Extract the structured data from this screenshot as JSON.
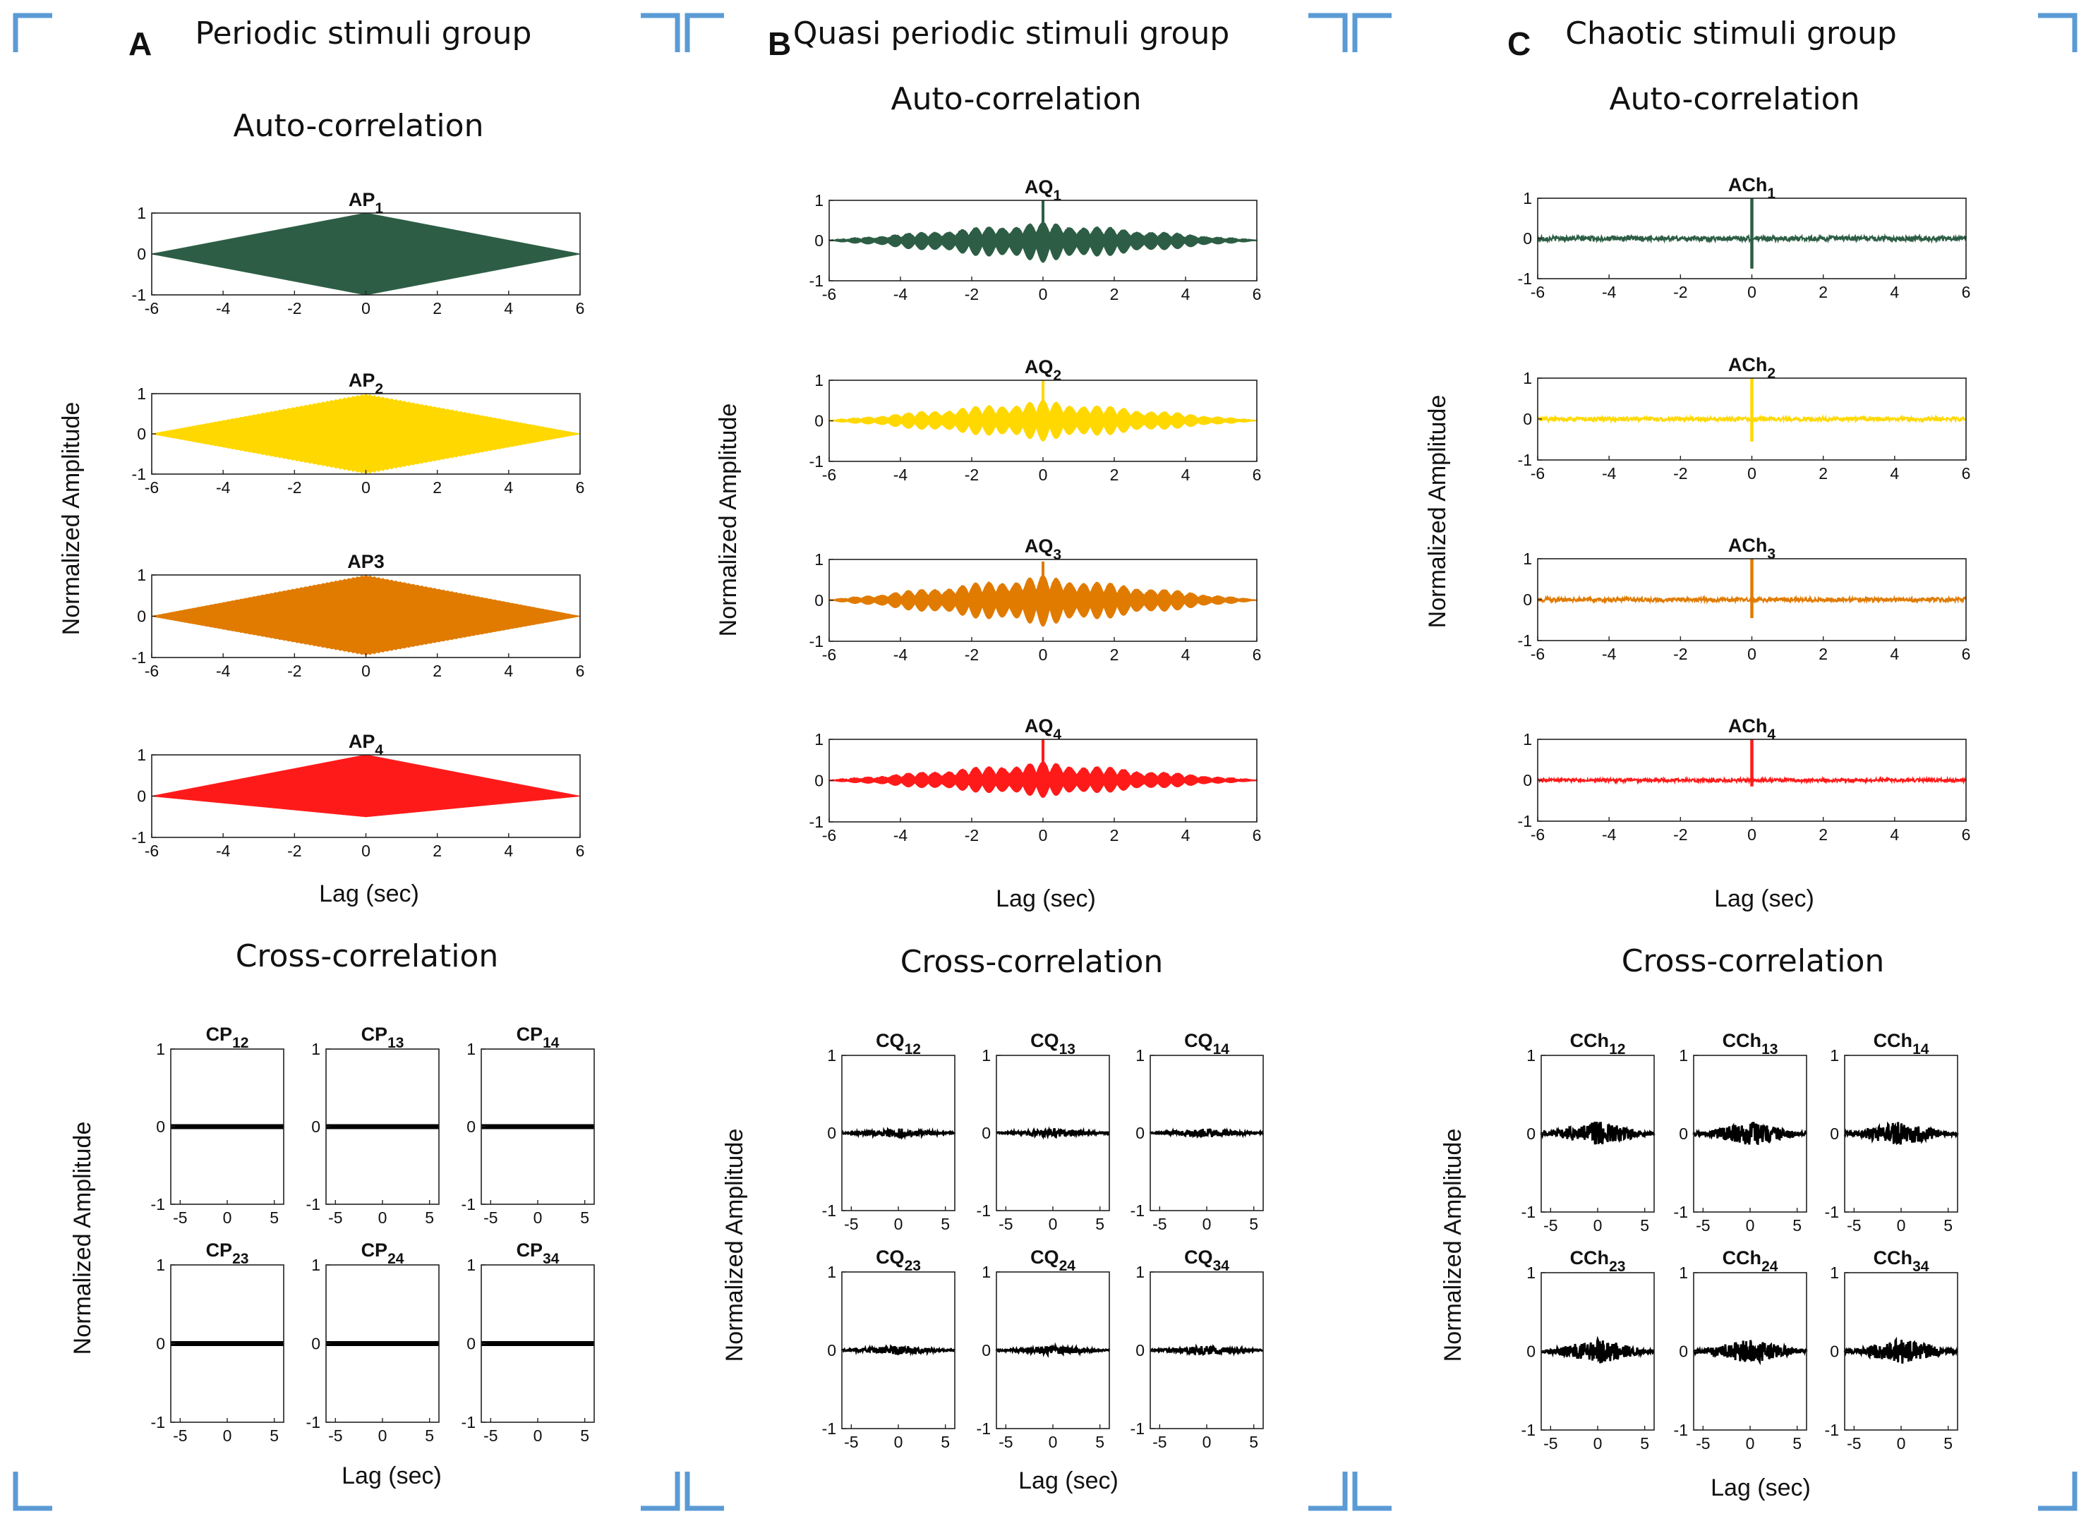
{
  "colors": {
    "corner_marks": "#5b9bd5",
    "series": [
      "#2d5e45",
      "#ffd800",
      "#e07b00",
      "#ff1a1a"
    ],
    "cross": "#000000"
  },
  "chart_data": [
    {
      "panel": "A",
      "title": "Periodic stimuli group",
      "auto": {
        "title": "Auto-correlation",
        "type": "area",
        "xlabel": "Lag (sec)",
        "ylabel": "Normalized Amplitude",
        "xlim": [
          -6,
          6
        ],
        "ylim": [
          -1,
          1
        ],
        "xticks": [
          "-6",
          "-4",
          "-2",
          "0",
          "2",
          "4",
          "6"
        ],
        "yticks": [
          "1",
          "0",
          "-1"
        ],
        "shape": "periodic",
        "series": [
          {
            "name": "AP",
            "sub": "1",
            "peak": 1.0,
            "trough": -1.0,
            "ripple": 0.0,
            "color": "#2d5e45"
          },
          {
            "name": "AP",
            "sub": "2",
            "peak": 1.0,
            "trough": -1.0,
            "ripple": 0.04,
            "color": "#ffd800"
          },
          {
            "name": "AP3",
            "sub": "",
            "peak": 1.0,
            "trough": -0.95,
            "ripple": 0.03,
            "color": "#e07b00"
          },
          {
            "name": "AP",
            "sub": "4",
            "peak": 1.0,
            "trough": -0.5,
            "ripple": 0.0,
            "color": "#ff1a1a"
          }
        ]
      },
      "cross": {
        "title": "Cross-correlation",
        "type": "line",
        "xlabel": "Lag (sec)",
        "ylabel": "Normalized Amplitude",
        "xlim": [
          -6,
          6
        ],
        "ylim": [
          -1,
          1
        ],
        "xticks": [
          "-5",
          "0",
          "5"
        ],
        "yticks": [
          "1",
          "0",
          "-1"
        ],
        "amplitude": 0.0,
        "plots": [
          {
            "name": "CP",
            "sub": "12"
          },
          {
            "name": "CP",
            "sub": "13"
          },
          {
            "name": "CP",
            "sub": "14"
          },
          {
            "name": "CP",
            "sub": "23"
          },
          {
            "name": "CP",
            "sub": "24"
          },
          {
            "name": "CP",
            "sub": "34"
          }
        ]
      }
    },
    {
      "panel": "B",
      "title": "Quasi periodic stimuli group",
      "auto": {
        "title": "Auto-correlation",
        "type": "area",
        "xlabel": "Lag (sec)",
        "ylabel": "Normalized Amplitude",
        "xlim": [
          -6,
          6
        ],
        "ylim": [
          -1,
          1
        ],
        "xticks": [
          "-6",
          "-4",
          "-2",
          "0",
          "2",
          "4",
          "6"
        ],
        "yticks": [
          "1",
          "0",
          "-1"
        ],
        "shape": "quasi",
        "series": [
          {
            "name": "AQ",
            "sub": "1",
            "peak": 1.0,
            "trough": -0.6,
            "envelope": 0.45,
            "color": "#2d5e45"
          },
          {
            "name": "AQ",
            "sub": "2",
            "peak": 1.0,
            "trough": -0.55,
            "envelope": 0.5,
            "color": "#ffd800"
          },
          {
            "name": "AQ",
            "sub": "3",
            "peak": 0.95,
            "trough": -0.7,
            "envelope": 0.6,
            "color": "#e07b00"
          },
          {
            "name": "AQ",
            "sub": "4",
            "peak": 1.0,
            "trough": -0.45,
            "envelope": 0.45,
            "color": "#ff1a1a"
          }
        ]
      },
      "cross": {
        "title": "Cross-correlation",
        "type": "line",
        "xlabel": "Lag (sec)",
        "ylabel": "Normalized Amplitude",
        "xlim": [
          -6,
          6
        ],
        "ylim": [
          -1,
          1
        ],
        "xticks": [
          "-5",
          "0",
          "5"
        ],
        "yticks": [
          "1",
          "0",
          "-1"
        ],
        "amplitude": 0.06,
        "plots": [
          {
            "name": "CQ",
            "sub": "12"
          },
          {
            "name": "CQ",
            "sub": "13"
          },
          {
            "name": "CQ",
            "sub": "14"
          },
          {
            "name": "CQ",
            "sub": "23"
          },
          {
            "name": "CQ",
            "sub": "24"
          },
          {
            "name": "CQ",
            "sub": "34"
          }
        ]
      }
    },
    {
      "panel": "C",
      "title": "Chaotic stimuli group",
      "auto": {
        "title": "Auto-correlation",
        "type": "line",
        "xlabel": "Lag (sec)",
        "ylabel": "Normalized Amplitude",
        "xlim": [
          -6,
          6
        ],
        "ylim": [
          -1,
          1
        ],
        "xticks": [
          "-6",
          "-4",
          "-2",
          "0",
          "2",
          "4",
          "6"
        ],
        "yticks": [
          "1",
          "0",
          "-1"
        ],
        "shape": "chaotic",
        "series": [
          {
            "name": "ACh",
            "sub": "1",
            "peak": 1.0,
            "trough": -0.75,
            "noise": 0.06,
            "color": "#2d5e45"
          },
          {
            "name": "ACh",
            "sub": "2",
            "peak": 1.0,
            "trough": -0.55,
            "noise": 0.05,
            "color": "#ffd800"
          },
          {
            "name": "ACh",
            "sub": "3",
            "peak": 1.0,
            "trough": -0.45,
            "noise": 0.05,
            "color": "#e07b00"
          },
          {
            "name": "ACh",
            "sub": "4",
            "peak": 1.0,
            "trough": -0.15,
            "noise": 0.04,
            "color": "#ff1a1a"
          }
        ]
      },
      "cross": {
        "title": "Cross-correlation",
        "type": "line",
        "xlabel": "Lag (sec)",
        "ylabel": "Normalized Amplitude",
        "xlim": [
          -6,
          6
        ],
        "ylim": [
          -1,
          1
        ],
        "xticks": [
          "-5",
          "0",
          "5"
        ],
        "yticks": [
          "1",
          "0",
          "-1"
        ],
        "amplitude": 0.16,
        "plots": [
          {
            "name": "CCh",
            "sub": "12"
          },
          {
            "name": "CCh",
            "sub": "13"
          },
          {
            "name": "CCh",
            "sub": "14"
          },
          {
            "name": "CCh",
            "sub": "23"
          },
          {
            "name": "CCh",
            "sub": "24"
          },
          {
            "name": "CCh",
            "sub": "34"
          }
        ]
      }
    }
  ]
}
